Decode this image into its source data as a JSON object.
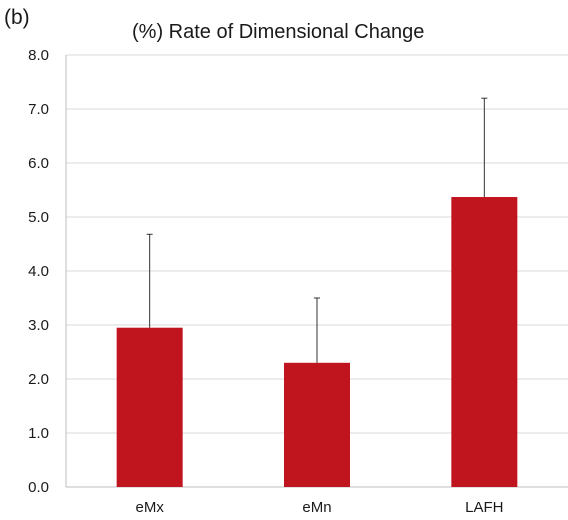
{
  "panel_label": "(b)",
  "chart_data": {
    "type": "bar",
    "title": "(%) Rate of Dimensional Change",
    "xlabel": "",
    "ylabel": "",
    "categories": [
      "eMx",
      "eMn",
      "LAFH"
    ],
    "values": [
      2.95,
      2.3,
      5.37
    ],
    "error_upper": [
      1.73,
      1.2,
      1.83
    ],
    "ylim": [
      0,
      8
    ],
    "yticks": [
      "0.0",
      "1.0",
      "2.0",
      "3.0",
      "4.0",
      "5.0",
      "6.0",
      "7.0",
      "8.0"
    ],
    "grid": true,
    "legend": "none",
    "colors": {
      "bar": "#c0141f",
      "error_bar": "#333333",
      "grid": "#d9d9d9"
    }
  }
}
